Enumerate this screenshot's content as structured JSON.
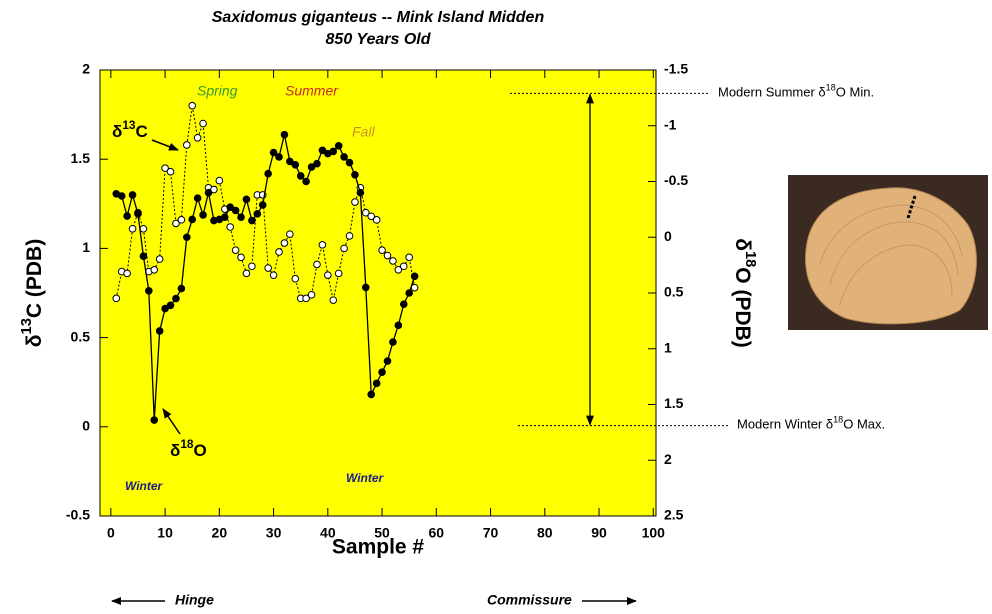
{
  "chart_data": {
    "type": "line",
    "title": [
      "Saxidomus giganteus -- Mink Island Midden",
      "850 Years Old"
    ],
    "x_label": "Sample #",
    "y_label": {
      "pre": "δ",
      "sup": "13",
      "post": "C (PDB)"
    },
    "y2_label": {
      "pre": "δ",
      "sup": "18",
      "post": "O (PDB)"
    },
    "xlim": [
      -2,
      100.5
    ],
    "xticks": [
      0,
      10,
      20,
      30,
      40,
      50,
      60,
      70,
      80,
      90,
      100
    ],
    "ylim": [
      -0.5,
      2
    ],
    "yticks": [
      -0.5,
      0,
      0.5,
      1,
      1.5,
      2
    ],
    "y2lim": [
      2.5,
      -1.5
    ],
    "y2ticks": [
      -1.5,
      -1,
      -0.5,
      0,
      0.5,
      1,
      1.5,
      2,
      2.5
    ],
    "background": "#ffff00",
    "series": [
      {
        "name": "δ13C",
        "color": "#000000",
        "marker": "open",
        "linestyle": "dotted",
        "x": [
          1,
          2,
          3,
          4,
          5,
          6,
          7,
          8,
          9,
          10,
          11,
          12,
          13,
          14,
          15,
          16,
          17,
          18,
          19,
          20,
          21,
          22,
          23,
          24,
          25,
          26,
          27,
          28,
          29,
          30,
          31,
          32,
          33,
          34,
          35,
          36,
          37,
          38,
          39,
          40,
          41,
          42,
          43,
          44,
          45,
          46,
          47,
          48,
          49,
          50,
          51,
          52,
          53,
          54,
          55,
          56
        ],
        "values": [
          0.72,
          0.87,
          0.86,
          1.11,
          1.2,
          1.11,
          0.87,
          0.88,
          0.94,
          1.45,
          1.43,
          1.14,
          1.16,
          1.58,
          1.8,
          1.62,
          1.7,
          1.34,
          1.33,
          1.38,
          1.22,
          1.12,
          0.99,
          0.95,
          0.86,
          0.9,
          1.3,
          1.3,
          0.89,
          0.85,
          0.98,
          1.03,
          1.08,
          0.83,
          0.72,
          0.72,
          0.74,
          0.91,
          1.02,
          0.85,
          0.71,
          0.86,
          1.0,
          1.07,
          1.26,
          1.34,
          1.2,
          1.18,
          1.16,
          0.99,
          0.96,
          0.93,
          0.88,
          0.9,
          0.95,
          0.78
        ]
      },
      {
        "name": "δ18O",
        "color": "#000000",
        "marker": "filled",
        "linestyle": "solid",
        "axis": "y2",
        "x": [
          1,
          2,
          3,
          4,
          5,
          6,
          7,
          8,
          9,
          10,
          11,
          12,
          13,
          14,
          15,
          16,
          17,
          18,
          19,
          20,
          21,
          22,
          23,
          24,
          25,
          26,
          27,
          28,
          29,
          30,
          31,
          32,
          33,
          34,
          35,
          36,
          37,
          38,
          39,
          40,
          41,
          42,
          43,
          44,
          45,
          46,
          47,
          48,
          49,
          50,
          51,
          52,
          53,
          54,
          55,
          56
        ],
        "values": [
          -0.39,
          -0.37,
          -0.19,
          -0.38,
          -0.21,
          0.17,
          0.48,
          1.64,
          0.84,
          0.64,
          0.61,
          0.55,
          0.46,
          0.0,
          -0.16,
          -0.35,
          -0.2,
          -0.4,
          -0.15,
          -0.16,
          -0.18,
          -0.27,
          -0.24,
          -0.18,
          -0.34,
          -0.15,
          -0.21,
          -0.29,
          -0.57,
          -0.76,
          -0.72,
          -0.92,
          -0.68,
          -0.65,
          -0.55,
          -0.5,
          -0.63,
          -0.66,
          -0.78,
          -0.75,
          -0.77,
          -0.82,
          -0.72,
          -0.67,
          -0.56,
          -0.4,
          0.45,
          1.41,
          1.31,
          1.21,
          1.11,
          0.94,
          0.79,
          0.6,
          0.5,
          0.35
        ]
      }
    ],
    "reference_lines": [
      {
        "axis": "y2",
        "value": -1.29,
        "label": {
          "pre": "Modern Summer δ",
          "sup": "18",
          "post": "O Min."
        }
      },
      {
        "axis": "y2",
        "value": 1.69,
        "label": {
          "pre": "Modern Winter δ",
          "sup": "18",
          "post": "O Max."
        }
      }
    ],
    "annotations": [
      {
        "text": "Spring",
        "color": "#3a9a2a"
      },
      {
        "text": "Summer",
        "color": "#cc2a1a"
      },
      {
        "text": "Fall",
        "color": "#c8902a"
      },
      {
        "text": "Winter",
        "color": "#1a1a8a"
      },
      {
        "text": "Winter",
        "color": "#1a1a8a"
      },
      {
        "pre": "δ",
        "sup": "13",
        "post": "C",
        "color": "#000000"
      },
      {
        "pre": "δ",
        "sup": "18",
        "post": "O",
        "color": "#000000"
      },
      {
        "text": "Hinge",
        "color": "#000000"
      },
      {
        "text": "Commissure",
        "color": "#000000"
      }
    ]
  }
}
